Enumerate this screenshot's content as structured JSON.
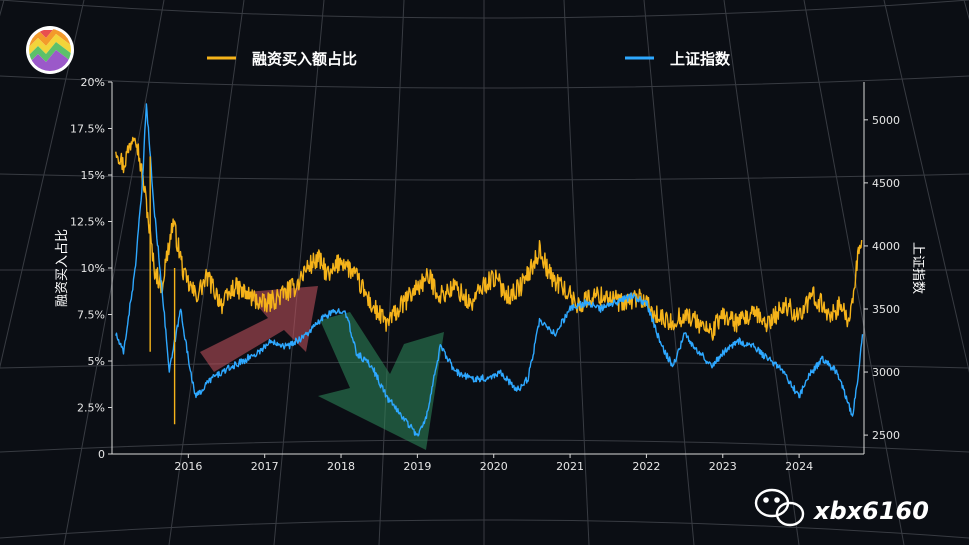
{
  "chart_data": {
    "type": "line",
    "x_axis": {
      "ticks": [
        "2016",
        "2017",
        "2018",
        "2019",
        "2020",
        "2021",
        "2022",
        "2023",
        "2024"
      ]
    },
    "y_left": {
      "label": "融资买入占比",
      "ylim": [
        0,
        20
      ],
      "ticks": [
        "0",
        "2.5%",
        "5%",
        "7.5%",
        "10%",
        "12.5%",
        "15%",
        "17.5%",
        "20%"
      ]
    },
    "y_right": {
      "label": "上证指数",
      "ylim": [
        2350,
        5300
      ],
      "ticks": [
        "2500",
        "3000",
        "3500",
        "4000",
        "4500",
        "5000"
      ]
    },
    "legend_position": "top",
    "grid": true,
    "series": [
      {
        "name": "融资买入额占比",
        "axis": "left",
        "color": "#f5b31a",
        "x": [
          2015.05,
          2015.15,
          2015.3,
          2015.45,
          2015.55,
          2015.65,
          2015.8,
          2015.95,
          2016.1,
          2016.25,
          2016.45,
          2016.6,
          2016.8,
          2017.0,
          2017.2,
          2017.4,
          2017.55,
          2017.7,
          2017.85,
          2018.0,
          2018.2,
          2018.4,
          2018.6,
          2018.8,
          2019.0,
          2019.15,
          2019.3,
          2019.5,
          2019.7,
          2019.85,
          2020.0,
          2020.2,
          2020.35,
          2020.5,
          2020.6,
          2020.75,
          2020.9,
          2021.1,
          2021.3,
          2021.5,
          2021.7,
          2021.9,
          2022.1,
          2022.3,
          2022.5,
          2022.7,
          2022.85,
          2023.0,
          2023.2,
          2023.4,
          2023.6,
          2023.8,
          2024.0,
          2024.2,
          2024.4,
          2024.55,
          2024.65,
          2024.75,
          2024.82
        ],
        "values": [
          16.5,
          15.5,
          17.5,
          13.5,
          10.0,
          9.0,
          12.5,
          9.5,
          8.5,
          9.5,
          8.0,
          9.0,
          8.5,
          8.0,
          8.5,
          9.0,
          10.0,
          10.5,
          9.5,
          10.5,
          9.5,
          8.0,
          7.0,
          8.0,
          9.0,
          9.5,
          8.5,
          9.0,
          8.0,
          9.0,
          9.5,
          8.5,
          9.0,
          10.0,
          11.0,
          9.5,
          9.0,
          8.0,
          8.5,
          8.5,
          8.0,
          8.5,
          7.5,
          7.0,
          7.5,
          7.0,
          6.5,
          7.5,
          7.0,
          7.5,
          7.0,
          8.0,
          7.5,
          8.5,
          7.5,
          8.0,
          7.0,
          10.0,
          11.5
        ]
      },
      {
        "name": "上证指数",
        "axis": "right",
        "color": "#2ea8ff",
        "x": [
          2015.05,
          2015.15,
          2015.3,
          2015.4,
          2015.45,
          2015.55,
          2015.65,
          2015.75,
          2015.9,
          2016.0,
          2016.1,
          2016.3,
          2016.6,
          2016.9,
          2017.1,
          2017.3,
          2017.55,
          2017.8,
          2018.05,
          2018.2,
          2018.4,
          2018.6,
          2018.8,
          2019.0,
          2019.1,
          2019.3,
          2019.5,
          2019.7,
          2019.9,
          2020.1,
          2020.3,
          2020.45,
          2020.6,
          2020.8,
          2021.0,
          2021.2,
          2021.4,
          2021.6,
          2021.8,
          2022.0,
          2022.2,
          2022.35,
          2022.5,
          2022.7,
          2022.85,
          2023.0,
          2023.2,
          2023.4,
          2023.6,
          2023.8,
          2024.0,
          2024.1,
          2024.3,
          2024.5,
          2024.62,
          2024.7,
          2024.78,
          2024.83
        ],
        "values": [
          3300,
          3150,
          3800,
          4500,
          5150,
          4300,
          3700,
          3000,
          3500,
          3100,
          2800,
          2950,
          3050,
          3150,
          3250,
          3200,
          3300,
          3450,
          3500,
          3150,
          3050,
          2800,
          2650,
          2500,
          2600,
          3200,
          3000,
          2950,
          2950,
          3000,
          2850,
          2950,
          3400,
          3300,
          3500,
          3550,
          3500,
          3550,
          3600,
          3550,
          3200,
          3050,
          3300,
          3150,
          3050,
          3150,
          3250,
          3200,
          3100,
          3000,
          2800,
          2950,
          3100,
          3000,
          2800,
          2650,
          3000,
          3300
        ]
      }
    ]
  },
  "legend": [
    {
      "label": "融资买入额占比",
      "color": "#f5b31a"
    },
    {
      "label": "上证指数",
      "color": "#2ea8ff"
    }
  ],
  "arrows": [
    {
      "color": "#c9545f",
      "direction": "up"
    },
    {
      "color": "#2f8a5b",
      "direction": "down"
    }
  ],
  "watermark": {
    "text": "xbx6160",
    "icon": "wechat-icon"
  },
  "logo": {
    "icon": "rainbow-zigzag-logo"
  }
}
